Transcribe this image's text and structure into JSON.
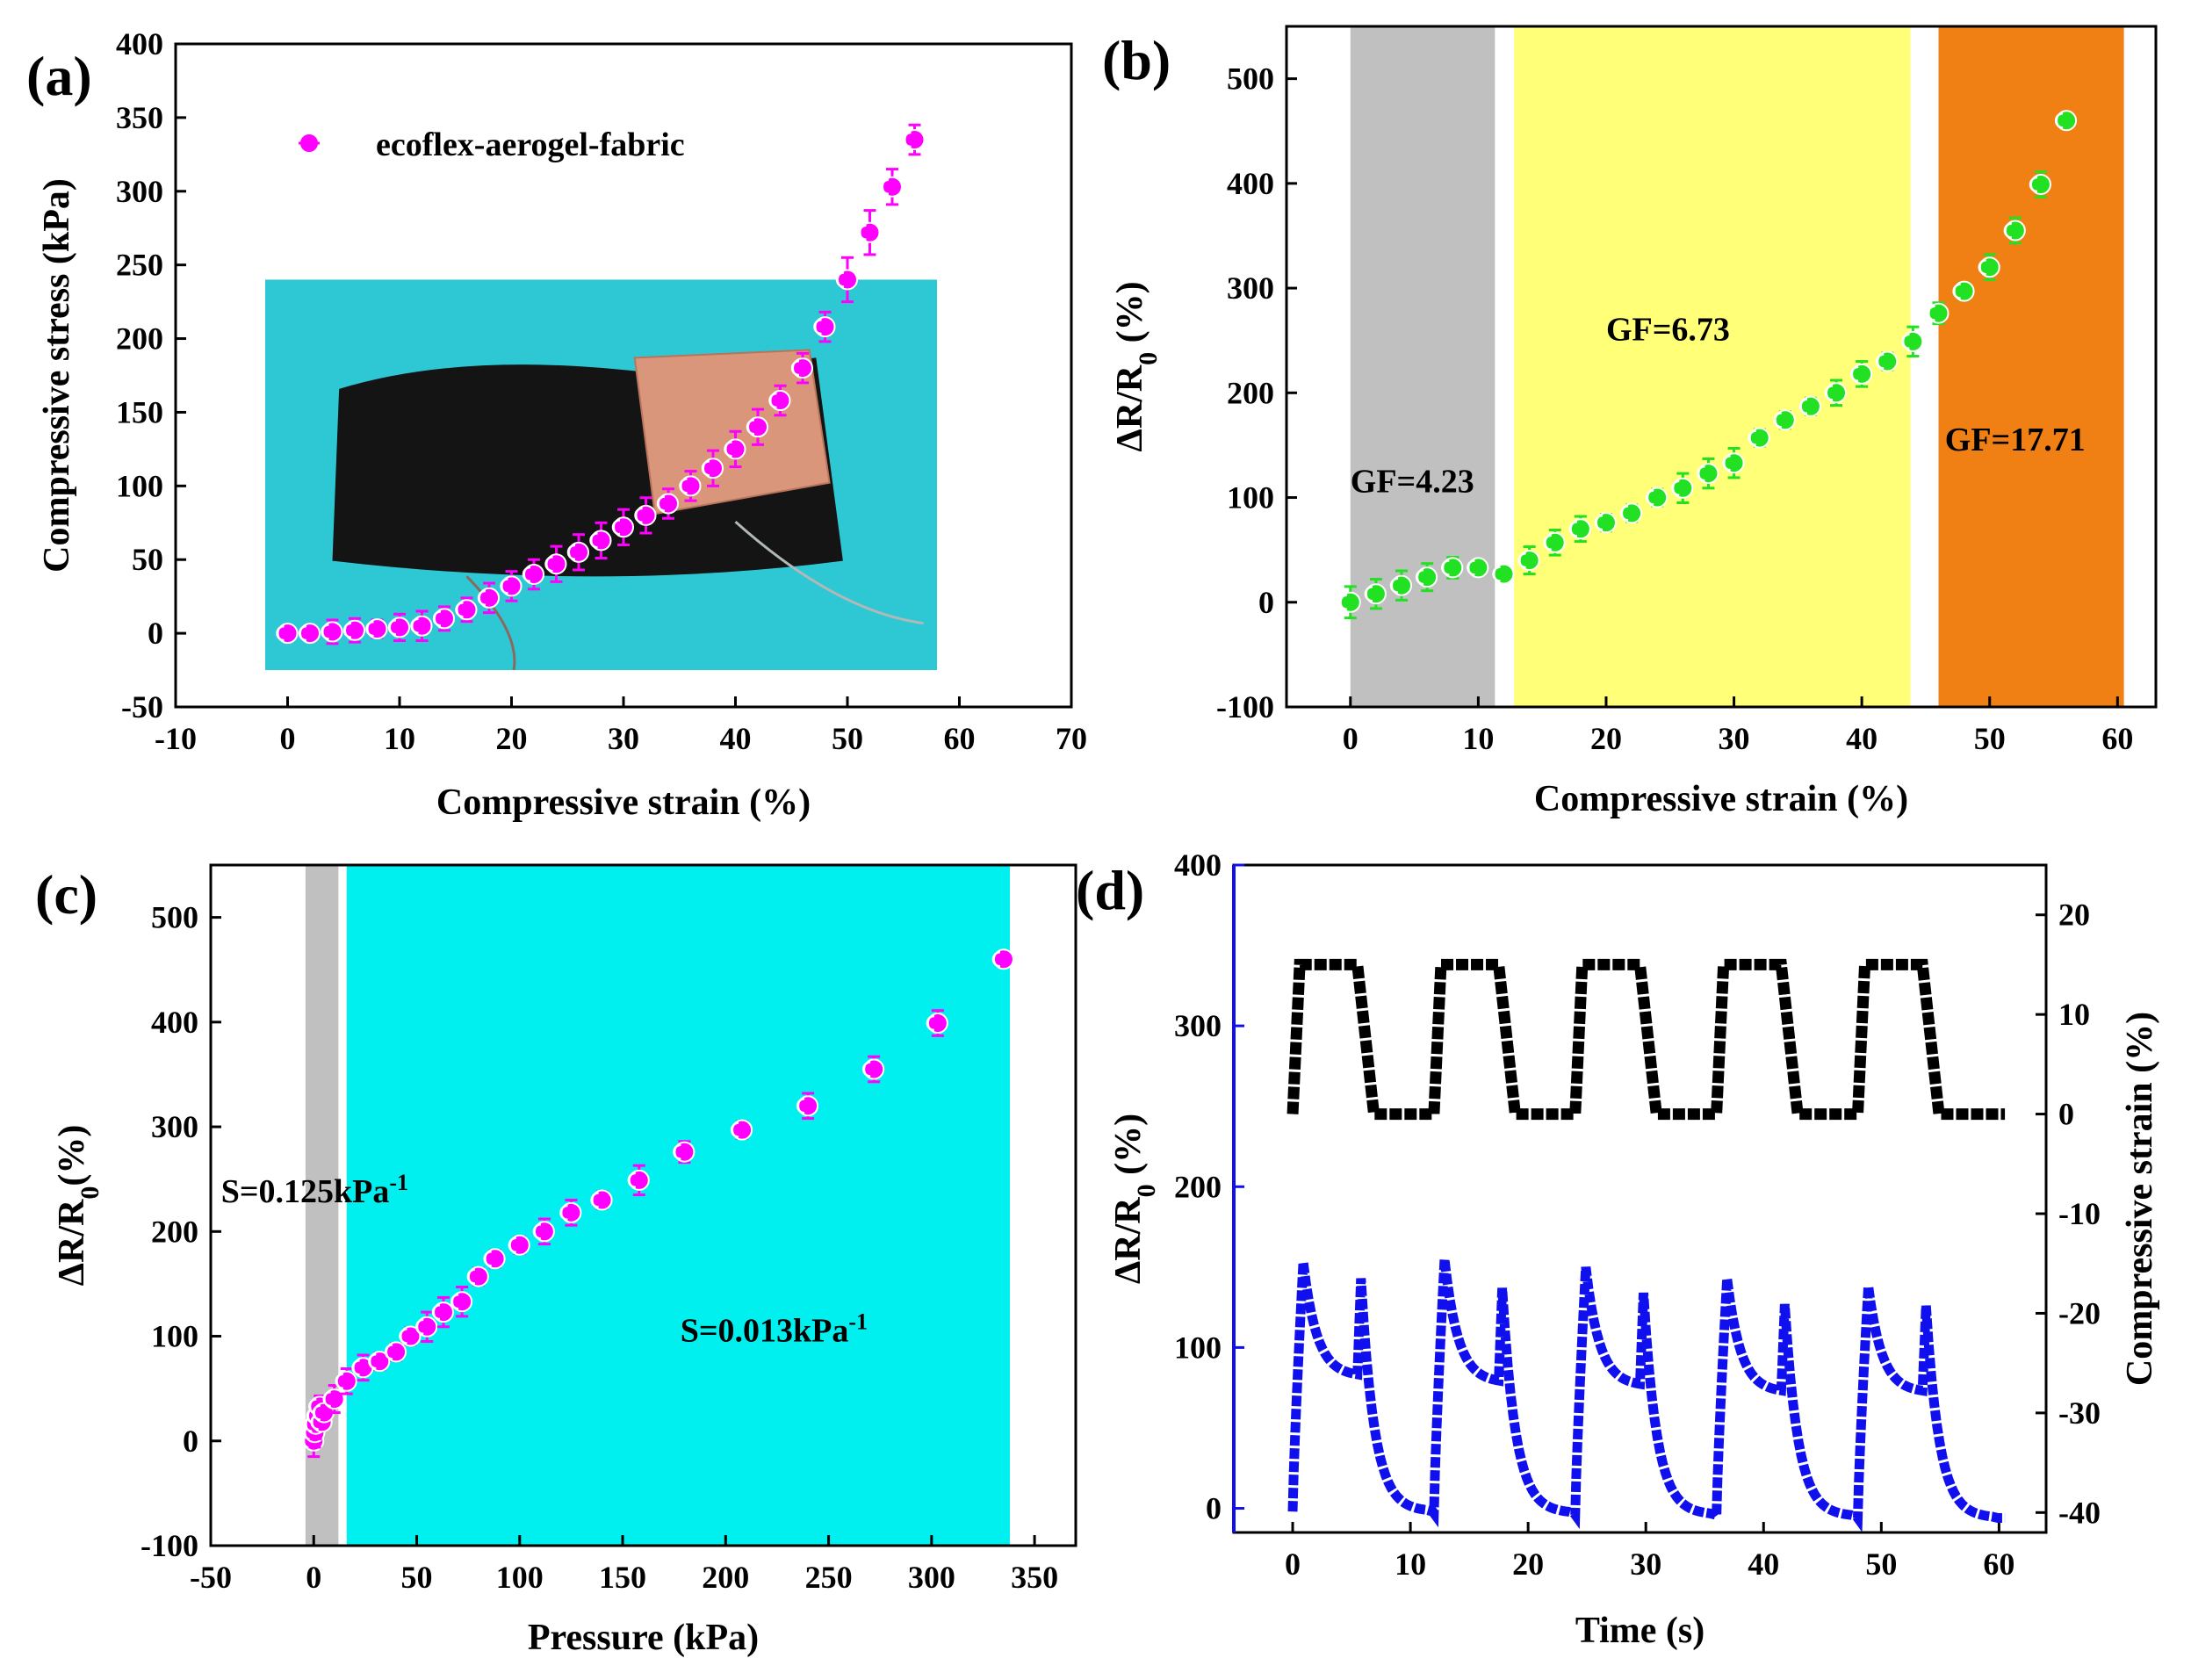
{
  "charts": [
    {
      "id": "a",
      "panel_label": "(a)",
      "type": "scatter",
      "xlabel": "Compressive strain (%)",
      "ylabel": "Compressive stress (kPa)",
      "xlim": [
        -10,
        70
      ],
      "ylim": [
        -50,
        400
      ],
      "xticks": [
        -10,
        0,
        10,
        20,
        30,
        40,
        50,
        60,
        70
      ],
      "yticks": [
        -50,
        0,
        50,
        100,
        150,
        200,
        250,
        300,
        350,
        400
      ],
      "grid": false,
      "legend_position": "top-left",
      "colors": {
        "marker": "#ff00ff",
        "inset_bg": "#2ec8d4",
        "sponge": "#141414",
        "copper": "#d9967a"
      },
      "inset_photo": {
        "description": "photo of black sponge sample with copper electrode on cyan background",
        "x_range": [
          -2,
          58
        ],
        "y_range": [
          -25,
          240
        ]
      },
      "series": [
        {
          "name": "ecoflex-aerogel-fabric",
          "x": [
            0,
            2,
            4,
            6,
            8,
            10,
            12,
            14,
            16,
            18,
            20,
            22,
            24,
            26,
            28,
            30,
            32,
            34,
            36,
            38,
            40,
            42,
            44,
            46,
            48,
            50,
            52,
            54,
            56
          ],
          "y": [
            0,
            0,
            1,
            2,
            3,
            4,
            5,
            10,
            16,
            24,
            32,
            40,
            47,
            55,
            63,
            72,
            80,
            88,
            100,
            112,
            125,
            140,
            158,
            180,
            208,
            240,
            272,
            303,
            335
          ],
          "err": [
            5,
            5,
            8,
            8,
            6,
            9,
            10,
            8,
            8,
            10,
            10,
            10,
            12,
            12,
            12,
            12,
            12,
            10,
            10,
            12,
            12,
            12,
            10,
            10,
            10,
            15,
            15,
            12,
            10
          ]
        }
      ]
    },
    {
      "id": "b",
      "panel_label": "(b)",
      "type": "scatter",
      "xlabel": "Compressive strain (%)",
      "ylabel_main": "ΔR/R",
      "ylabel_sub": "0",
      "ylabel_tail": " (%)",
      "xlim": [
        -5,
        63
      ],
      "ylim": [
        -100,
        550
      ],
      "xticks": [
        0,
        10,
        20,
        30,
        40,
        50,
        60
      ],
      "yticks": [
        -100,
        0,
        100,
        200,
        300,
        400,
        500
      ],
      "grid": false,
      "colors": {
        "marker": "#22e022"
      },
      "regions": [
        {
          "x0": 0,
          "x1": 11.3,
          "color": "#c0c0c0"
        },
        {
          "x0": 12.8,
          "x1": 43.8,
          "color": "#ffff78"
        },
        {
          "x0": 46,
          "x1": 60.5,
          "color": "#f07f14"
        }
      ],
      "annotations": [
        {
          "text": "GF=4.23",
          "x": 0,
          "y": 105
        },
        {
          "text": "GF=6.73",
          "x": 20,
          "y": 250
        },
        {
          "text": "GF=17.71",
          "x": 46.5,
          "y": 145
        }
      ],
      "series": [
        {
          "x": [
            0,
            2,
            4,
            6,
            8,
            10,
            12,
            14,
            16,
            18,
            20,
            22,
            24,
            26,
            28,
            30,
            32,
            34,
            36,
            38,
            40,
            42,
            44,
            46,
            48,
            50,
            52,
            54,
            56
          ],
          "y": [
            0,
            8,
            16,
            24,
            33,
            33,
            27,
            40,
            57,
            70,
            76,
            85,
            100,
            109,
            123,
            133,
            157,
            174,
            187,
            200,
            218,
            230,
            249,
            276,
            297,
            320,
            355,
            399,
            460
          ],
          "err": [
            15,
            14,
            14,
            13,
            10,
            6,
            6,
            13,
            12,
            12,
            8,
            8,
            8,
            14,
            14,
            14,
            8,
            8,
            8,
            12,
            12,
            8,
            14,
            10,
            8,
            12,
            12,
            12,
            6
          ]
        }
      ]
    },
    {
      "id": "c",
      "panel_label": "(c)",
      "type": "scatter",
      "xlabel": "Pressure (kPa)",
      "ylabel_main": "ΔR/R",
      "ylabel_sub": "0",
      "ylabel_tail": "(%)",
      "xlim": [
        -50,
        370
      ],
      "ylim": [
        -100,
        550
      ],
      "xticks": [
        -50,
        0,
        50,
        100,
        150,
        200,
        250,
        300,
        350
      ],
      "yticks": [
        -100,
        0,
        100,
        200,
        300,
        400,
        500
      ],
      "grid": false,
      "colors": {
        "marker": "#ff00ff"
      },
      "regions": [
        {
          "x0": -4,
          "x1": 12,
          "color": "#c0c0c0"
        },
        {
          "x0": 16,
          "x1": 338,
          "color": "#00f0f0"
        }
      ],
      "annotations": [
        {
          "text": "S=0.125kPa",
          "sup": "-1",
          "x": -45,
          "y": 228
        },
        {
          "text": "S=0.013kPa",
          "sup": "-1",
          "x": 178,
          "y": 95
        }
      ],
      "series": [
        {
          "x": [
            0,
            0.5,
            1,
            2,
            3,
            4,
            5,
            10,
            16,
            24,
            32,
            40,
            47,
            55,
            63,
            72,
            80,
            88,
            100,
            112,
            125,
            140,
            158,
            180,
            208,
            240,
            272,
            303,
            335
          ],
          "y": [
            0,
            8,
            16,
            24,
            33,
            18,
            27,
            40,
            57,
            70,
            76,
            85,
            100,
            109,
            123,
            133,
            157,
            174,
            187,
            200,
            218,
            230,
            249,
            276,
            297,
            320,
            355,
            399,
            460
          ],
          "err": [
            15,
            14,
            14,
            13,
            10,
            6,
            6,
            13,
            12,
            12,
            8,
            8,
            8,
            14,
            14,
            14,
            8,
            8,
            8,
            12,
            12,
            8,
            14,
            10,
            8,
            12,
            12,
            12,
            6
          ]
        }
      ]
    },
    {
      "id": "d",
      "panel_label": "(d)",
      "type": "line",
      "xlabel": "Time (s)",
      "ylabel_main": "ΔR/R",
      "ylabel_sub": "0",
      "ylabel_tail": " (%)",
      "y2label": "Compressive strain (%)",
      "xlim": [
        -5,
        64
      ],
      "ylim": [
        -15,
        400
      ],
      "y2lim": [
        -42,
        25
      ],
      "xticks": [
        0,
        10,
        20,
        30,
        40,
        50,
        60
      ],
      "yticks": [
        0,
        100,
        200,
        300,
        400
      ],
      "y2ticks": [
        -40,
        -30,
        -20,
        -10,
        0,
        10,
        20
      ],
      "grid": false,
      "colors": {
        "left_axis": "#1010ee",
        "resistance": "#1010ee",
        "strain": "#000000"
      },
      "strain_series": {
        "x": [
          0,
          0.6,
          5.5,
          6.9,
          12.0,
          12.6,
          17.5,
          18.9,
          24.0,
          24.6,
          29.5,
          30.9,
          36.0,
          36.6,
          41.5,
          42.9,
          48.0,
          48.6,
          53.5,
          54.9,
          60.5
        ],
        "y": [
          0,
          15,
          15,
          0,
          0,
          15,
          15,
          0,
          0,
          15,
          15,
          0,
          0,
          15,
          15,
          0,
          0,
          15,
          15,
          0,
          0
        ]
      },
      "resistance_series": {
        "cycle_starts": [
          0,
          12,
          24,
          36,
          48
        ],
        "peak1": [
          153,
          155,
          150,
          143,
          138
        ],
        "plateau": [
          82,
          78,
          76,
          72,
          72
        ],
        "peak2": [
          143,
          137,
          134,
          127,
          126
        ],
        "base": [
          -2,
          -3,
          -4,
          -5,
          -6
        ]
      }
    }
  ]
}
